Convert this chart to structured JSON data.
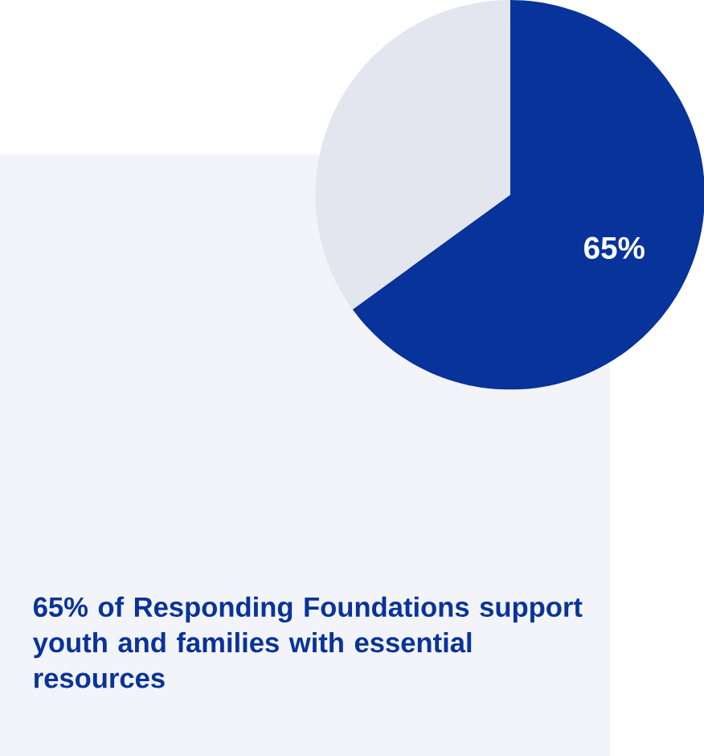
{
  "chart_data": {
    "type": "pie",
    "title": "65% of Responding Foundations support youth and families with essential resources",
    "categories": [
      null,
      null
    ],
    "values": [
      65,
      35
    ],
    "colors": [
      "#08339a",
      "#e3e6ef"
    ],
    "value_labels": [
      "65%",
      null
    ]
  }
}
